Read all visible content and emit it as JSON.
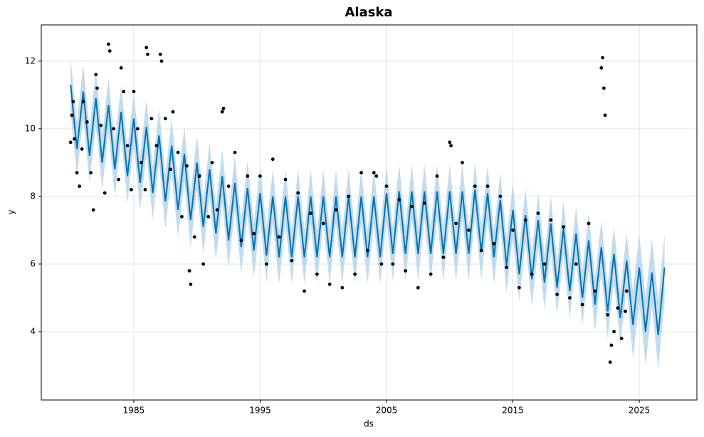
{
  "chart_data": {
    "type": "line",
    "title": "Alaska",
    "x_label": "ds",
    "y_label": "y",
    "xlim": [
      1977.68,
      2029.56
    ],
    "ylim": [
      1.98,
      13.07
    ],
    "xticks": [
      1985,
      1995,
      2005,
      2015,
      2025
    ],
    "yticks": [
      4,
      6,
      8,
      10,
      12
    ],
    "grid": true,
    "forecast": {
      "color": "#0072b2",
      "band_color": "#b3d3e8",
      "x": [
        1980,
        1980.5,
        1981,
        1981.5,
        1982,
        1982.5,
        1983,
        1983.5,
        1984,
        1984.5,
        1985,
        1985.5,
        1986,
        1986.5,
        1987,
        1987.5,
        1988,
        1988.5,
        1989,
        1989.5,
        1990,
        1990.5,
        1991,
        1991.5,
        1992,
        1992.5,
        1993,
        1993.5,
        1994,
        1994.5,
        1995,
        1995.5,
        1996,
        1996.5,
        1997,
        1997.5,
        1998,
        1998.5,
        1999,
        1999.5,
        2000,
        2000.5,
        2001,
        2001.5,
        2002,
        2002.5,
        2003,
        2003.5,
        2004,
        2004.5,
        2005,
        2005.5,
        2006,
        2006.5,
        2007,
        2007.5,
        2008,
        2008.5,
        2009,
        2009.5,
        2010,
        2010.5,
        2011,
        2011.5,
        2012,
        2012.5,
        2013,
        2013.5,
        2014,
        2014.5,
        2015,
        2015.5,
        2016,
        2016.5,
        2017,
        2017.5,
        2018,
        2018.5,
        2019,
        2019.5,
        2020,
        2020.5,
        2021,
        2021.5,
        2022,
        2022.5,
        2023,
        2023.5,
        2024,
        2024.5,
        2025,
        2025.5,
        2026,
        2026.5,
        2027
      ],
      "values": [
        11.3,
        9.4,
        11.1,
        9.2,
        10.9,
        9.0,
        10.7,
        8.8,
        10.5,
        8.6,
        10.3,
        8.4,
        10.05,
        8.1,
        9.8,
        7.85,
        9.5,
        7.6,
        9.25,
        7.3,
        9.0,
        7.1,
        8.8,
        6.9,
        8.6,
        6.7,
        8.4,
        6.5,
        8.25,
        6.4,
        8.1,
        6.25,
        8.0,
        6.2,
        8.0,
        6.2,
        8.0,
        6.2,
        8.0,
        6.2,
        8.0,
        6.2,
        8.0,
        6.2,
        8.0,
        6.2,
        8.0,
        6.2,
        8.0,
        6.2,
        8.1,
        6.3,
        8.15,
        6.3,
        8.15,
        6.3,
        8.15,
        6.3,
        8.15,
        6.3,
        8.15,
        6.3,
        8.15,
        6.3,
        8.2,
        6.35,
        8.1,
        6.2,
        7.9,
        5.95,
        7.6,
        5.7,
        7.45,
        5.55,
        7.3,
        5.45,
        7.2,
        5.3,
        7.05,
        5.2,
        6.9,
        5.0,
        6.7,
        4.8,
        6.5,
        4.6,
        6.3,
        4.4,
        6.1,
        4.2,
        5.9,
        4.0,
        5.75,
        3.9,
        5.9
      ],
      "upper": [
        12.1,
        10.2,
        11.9,
        10.0,
        11.7,
        9.8,
        11.5,
        9.6,
        11.3,
        9.4,
        11.1,
        9.2,
        10.85,
        8.9,
        10.6,
        8.65,
        10.3,
        8.4,
        10.05,
        8.1,
        9.8,
        7.9,
        9.6,
        7.7,
        9.4,
        7.5,
        9.2,
        7.3,
        9.05,
        7.2,
        8.9,
        7.05,
        8.8,
        7.0,
        8.8,
        7.0,
        8.8,
        7.0,
        8.8,
        7.0,
        8.8,
        7.0,
        8.8,
        7.0,
        8.8,
        7.0,
        8.8,
        7.0,
        8.8,
        7.0,
        8.9,
        7.1,
        8.95,
        7.1,
        8.95,
        7.1,
        8.95,
        7.1,
        8.95,
        7.1,
        8.95,
        7.1,
        8.95,
        7.1,
        9.0,
        7.15,
        8.9,
        7.0,
        8.7,
        6.75,
        8.4,
        6.5,
        8.25,
        6.35,
        8.1,
        6.25,
        8.0,
        6.1,
        7.85,
        6.0,
        7.7,
        5.8,
        7.5,
        5.6,
        7.3,
        5.4,
        7.1,
        5.2,
        6.9,
        5.2,
        6.9,
        5.0,
        6.75,
        4.9,
        6.9
      ],
      "lower": [
        10.5,
        8.6,
        10.3,
        8.4,
        10.1,
        8.2,
        9.9,
        8.0,
        9.7,
        7.8,
        9.5,
        7.6,
        9.25,
        7.3,
        9.0,
        7.05,
        8.7,
        6.8,
        8.45,
        6.5,
        8.2,
        6.3,
        8.0,
        6.1,
        7.8,
        5.9,
        7.6,
        5.7,
        7.45,
        5.6,
        7.3,
        5.45,
        7.2,
        5.4,
        7.2,
        5.4,
        7.2,
        5.4,
        7.2,
        5.4,
        7.2,
        5.4,
        7.2,
        5.4,
        7.2,
        5.4,
        7.2,
        5.4,
        7.2,
        5.4,
        7.3,
        5.5,
        7.35,
        5.5,
        7.35,
        5.5,
        7.35,
        5.5,
        7.35,
        5.5,
        7.35,
        5.5,
        7.35,
        5.5,
        7.4,
        5.55,
        7.3,
        5.4,
        7.1,
        5.15,
        6.8,
        4.9,
        6.65,
        4.75,
        6.5,
        4.65,
        6.4,
        4.5,
        6.25,
        4.4,
        6.1,
        4.2,
        5.9,
        4.0,
        5.7,
        3.8,
        5.5,
        3.6,
        5.3,
        3.2,
        4.9,
        3.0,
        4.75,
        2.9,
        4.9
      ]
    },
    "observed": {
      "color": "#000000",
      "x": [
        1980.0,
        1980.1,
        1980.2,
        1980.3,
        1980.5,
        1980.7,
        1980.9,
        1981.0,
        1981.3,
        1981.6,
        1981.8,
        1982.0,
        1982.1,
        1982.4,
        1982.7,
        1983.0,
        1983.1,
        1983.4,
        1983.8,
        1984.0,
        1984.2,
        1984.5,
        1984.8,
        1985.0,
        1985.3,
        1985.6,
        1985.9,
        1986.0,
        1986.1,
        1986.4,
        1986.8,
        1987.1,
        1987.2,
        1987.5,
        1987.9,
        1988.1,
        1988.5,
        1988.8,
        1989.2,
        1989.4,
        1989.5,
        1989.8,
        1990.2,
        1990.5,
        1990.9,
        1991.2,
        1991.6,
        1992.0,
        1992.1,
        1992.5,
        1993.0,
        1993.5,
        1994.0,
        1994.5,
        1995.0,
        1995.5,
        1996.0,
        1996.5,
        1997.0,
        1997.5,
        1998.0,
        1998.5,
        1999.0,
        1999.5,
        2000.0,
        2000.5,
        2001.0,
        2001.5,
        2002.0,
        2002.5,
        2003.0,
        2003.5,
        2004.0,
        2004.2,
        2004.6,
        2005.0,
        2005.5,
        2006.0,
        2006.5,
        2007.0,
        2007.5,
        2008.0,
        2008.5,
        2009.0,
        2009.5,
        2010.0,
        2010.1,
        2010.5,
        2011.0,
        2011.5,
        2012.0,
        2012.5,
        2013.0,
        2013.5,
        2014.0,
        2014.5,
        2015.0,
        2015.5,
        2016.0,
        2016.5,
        2017.0,
        2017.5,
        2018.0,
        2018.5,
        2019.0,
        2019.5,
        2020.0,
        2020.5,
        2021.0,
        2021.5,
        2022.0,
        2022.1,
        2022.2,
        2022.3,
        2022.5,
        2022.7,
        2022.8,
        2023.0,
        2023.3,
        2023.6,
        2023.9,
        2024.0
      ],
      "values": [
        9.6,
        10.4,
        10.8,
        9.7,
        8.7,
        8.3,
        9.4,
        10.8,
        10.2,
        8.7,
        7.6,
        11.6,
        11.2,
        10.1,
        8.1,
        12.5,
        12.3,
        10.0,
        8.5,
        11.8,
        11.1,
        9.5,
        8.2,
        11.1,
        10.0,
        9.0,
        8.2,
        12.4,
        12.2,
        10.3,
        9.5,
        12.2,
        12.0,
        10.3,
        8.8,
        10.5,
        9.3,
        7.4,
        8.9,
        5.8,
        5.4,
        6.8,
        8.6,
        6.0,
        7.4,
        9.0,
        7.6,
        10.5,
        10.6,
        8.3,
        9.3,
        6.7,
        8.6,
        6.9,
        8.6,
        6.0,
        9.1,
        6.8,
        8.5,
        6.1,
        8.1,
        5.2,
        7.5,
        5.7,
        7.2,
        5.4,
        7.6,
        5.3,
        8.0,
        5.7,
        8.7,
        6.4,
        8.7,
        8.6,
        6.0,
        8.3,
        6.0,
        7.9,
        5.8,
        7.7,
        5.3,
        7.8,
        5.7,
        8.6,
        6.2,
        9.6,
        9.5,
        7.2,
        9.0,
        7.0,
        8.3,
        6.4,
        8.3,
        6.6,
        8.0,
        5.9,
        7.0,
        5.3,
        7.3,
        5.7,
        7.5,
        6.0,
        7.3,
        5.1,
        7.1,
        5.0,
        6.0,
        4.8,
        7.2,
        5.2,
        11.8,
        12.1,
        11.2,
        10.4,
        4.5,
        3.1,
        3.6,
        4.0,
        4.7,
        3.8,
        4.6,
        5.2
      ]
    }
  }
}
